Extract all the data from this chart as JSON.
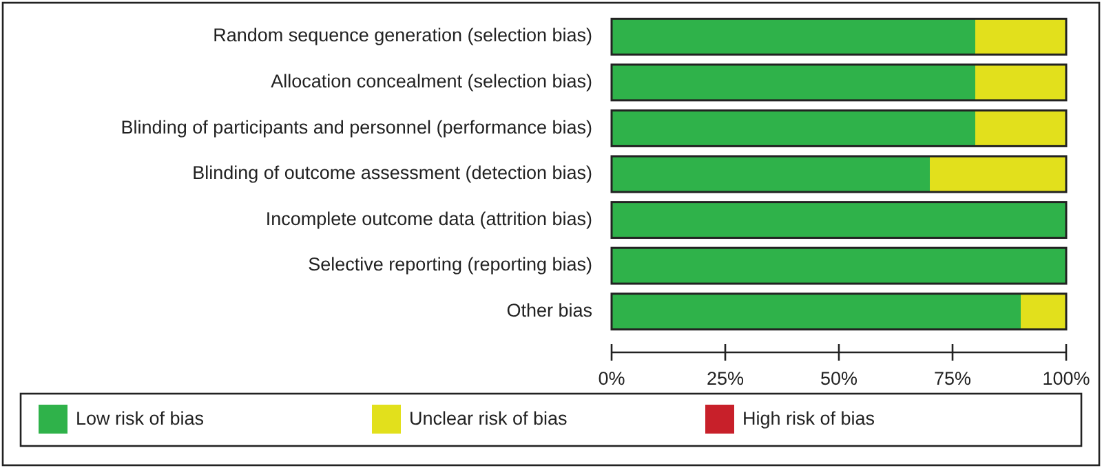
{
  "chart_data": {
    "type": "bar",
    "orientation": "horizontal",
    "stacked": true,
    "categories": [
      "Random sequence generation (selection bias)",
      "Allocation concealment (selection bias)",
      "Blinding of participants and personnel (performance bias)",
      "Blinding of outcome assessment (detection bias)",
      "Incomplete outcome data (attrition bias)",
      "Selective reporting (reporting bias)",
      "Other bias"
    ],
    "series": [
      {
        "name": "Low risk of bias",
        "color": "#2fb24a",
        "values": [
          80,
          80,
          80,
          70,
          100,
          100,
          90
        ]
      },
      {
        "name": "Unclear risk of bias",
        "color": "#e2e01c",
        "values": [
          20,
          20,
          20,
          30,
          0,
          0,
          10
        ]
      },
      {
        "name": "High risk of bias",
        "color": "#c8202a",
        "values": [
          0,
          0,
          0,
          0,
          0,
          0,
          0
        ]
      }
    ],
    "xlim": [
      0,
      100
    ],
    "xticks": [
      {
        "value": 0,
        "label": "0%"
      },
      {
        "value": 25,
        "label": "25%"
      },
      {
        "value": 50,
        "label": "50%"
      },
      {
        "value": 75,
        "label": "75%"
      },
      {
        "value": 100,
        "label": "100%"
      }
    ],
    "legend": "bottom"
  }
}
